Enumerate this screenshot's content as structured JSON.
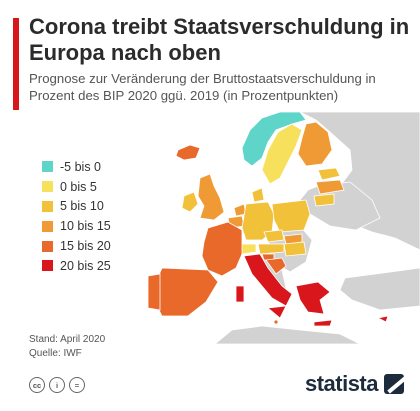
{
  "header": {
    "title": "Corona treibt Staatsverschuldung in Europa nach oben",
    "subtitle": "Prognose zur Veränderung der Bruttostaatsverschuldung in Prozent des BIP 2020 ggü. 2019 (in Prozentpunkten)",
    "accent_color": "#d9161b"
  },
  "legend": [
    {
      "label": "-5 bis 0",
      "color": "#5fd4c8"
    },
    {
      "label": "0 bis 5",
      "color": "#f7e15c"
    },
    {
      "label": "5 bis 10",
      "color": "#f2c13a"
    },
    {
      "label": "10 bis 15",
      "color": "#ef9a34"
    },
    {
      "label": "15 bis 20",
      "color": "#e9692a"
    },
    {
      "label": "20 bis 25",
      "color": "#d9161b"
    }
  ],
  "map": {
    "no_data_color": "#d2d2d2",
    "water_color": "#ffffff",
    "regions": [
      {
        "name": "Island",
        "bin": "15 bis 20"
      },
      {
        "name": "Norwegen",
        "bin": "-5 bis 0"
      },
      {
        "name": "Schweden",
        "bin": "0 bis 5"
      },
      {
        "name": "Finnland",
        "bin": "10 bis 15"
      },
      {
        "name": "Estland",
        "bin": "5 bis 10"
      },
      {
        "name": "Lettland",
        "bin": "10 bis 15"
      },
      {
        "name": "Litauen",
        "bin": "5 bis 10"
      },
      {
        "name": "Irland",
        "bin": "5 bis 10"
      },
      {
        "name": "Vereinigtes Königreich",
        "bin": "10 bis 15"
      },
      {
        "name": "Dänemark",
        "bin": "5 bis 10"
      },
      {
        "name": "Niederlande",
        "bin": "10 bis 15"
      },
      {
        "name": "Belgien",
        "bin": "10 bis 15"
      },
      {
        "name": "Deutschland",
        "bin": "5 bis 10"
      },
      {
        "name": "Polen",
        "bin": "5 bis 10"
      },
      {
        "name": "Tschechien",
        "bin": "5 bis 10"
      },
      {
        "name": "Slowakei",
        "bin": "10 bis 15"
      },
      {
        "name": "Österreich",
        "bin": "5 bis 10"
      },
      {
        "name": "Ungarn",
        "bin": "5 bis 10"
      },
      {
        "name": "Schweiz",
        "bin": "0 bis 5"
      },
      {
        "name": "Frankreich",
        "bin": "15 bis 20"
      },
      {
        "name": "Spanien",
        "bin": "15 bis 20"
      },
      {
        "name": "Portugal",
        "bin": "15 bis 20"
      },
      {
        "name": "Italien",
        "bin": "20 bis 25"
      },
      {
        "name": "Slowenien",
        "bin": "15 bis 20"
      },
      {
        "name": "Kroatien",
        "bin": "15 bis 20"
      },
      {
        "name": "Griechenland",
        "bin": "20 bis 25"
      },
      {
        "name": "Zypern",
        "bin": "20 bis 25"
      },
      {
        "name": "Malta",
        "bin": "15 bis 20"
      }
    ]
  },
  "footer": {
    "stand": "Stand: April 2020",
    "quelle": "Quelle: IWF",
    "license_icons": [
      "cc-icon",
      "by-icon",
      "nd-icon"
    ],
    "license_glyphs": [
      "cc",
      "i",
      "="
    ],
    "brand": "statista"
  }
}
